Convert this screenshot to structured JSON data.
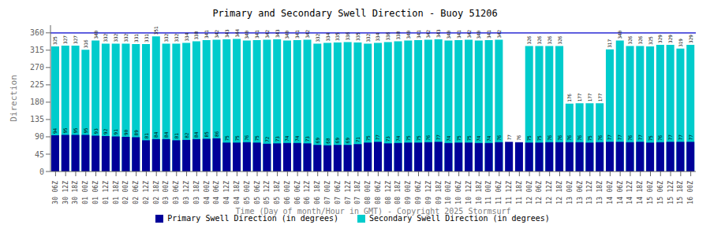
{
  "chart_data": {
    "type": "bar",
    "title": "Primary and Secondary Swell Direction - Buoy 51206",
    "xlabel": "Time (Day of month/Hour in GMT) - Copyright 2025 Stormsurf",
    "ylabel": "Direction",
    "categories": [
      [
        "06Z",
        "30"
      ],
      [
        "12Z",
        "30"
      ],
      [
        "18Z",
        "30"
      ],
      [
        "00Z",
        "01"
      ],
      [
        "06Z",
        "01"
      ],
      [
        "12Z",
        "01"
      ],
      [
        "18Z",
        "01"
      ],
      [
        "00Z",
        "02"
      ],
      [
        "06Z",
        "02"
      ],
      [
        "12Z",
        "02"
      ],
      [
        "18Z",
        "02"
      ],
      [
        "00Z",
        "03"
      ],
      [
        "06Z",
        "03"
      ],
      [
        "12Z",
        "03"
      ],
      [
        "18Z",
        "03"
      ],
      [
        "00Z",
        "04"
      ],
      [
        "06Z",
        "04"
      ],
      [
        "12Z",
        "04"
      ],
      [
        "18Z",
        "04"
      ],
      [
        "00Z",
        "05"
      ],
      [
        "06Z",
        "05"
      ],
      [
        "12Z",
        "05"
      ],
      [
        "18Z",
        "05"
      ],
      [
        "00Z",
        "06"
      ],
      [
        "06Z",
        "06"
      ],
      [
        "12Z",
        "06"
      ],
      [
        "18Z",
        "06"
      ],
      [
        "00Z",
        "07"
      ],
      [
        "06Z",
        "07"
      ],
      [
        "12Z",
        "07"
      ],
      [
        "18Z",
        "07"
      ],
      [
        "00Z",
        "08"
      ],
      [
        "06Z",
        "08"
      ],
      [
        "12Z",
        "08"
      ],
      [
        "18Z",
        "08"
      ],
      [
        "00Z",
        "09"
      ],
      [
        "06Z",
        "09"
      ],
      [
        "12Z",
        "09"
      ],
      [
        "18Z",
        "09"
      ],
      [
        "00Z",
        "10"
      ],
      [
        "06Z",
        "10"
      ],
      [
        "12Z",
        "10"
      ],
      [
        "18Z",
        "10"
      ],
      [
        "00Z",
        "11"
      ],
      [
        "06Z",
        "11"
      ],
      [
        "12Z",
        "11"
      ],
      [
        "18Z",
        "11"
      ],
      [
        "00Z",
        "12"
      ],
      [
        "06Z",
        "12"
      ],
      [
        "12Z",
        "12"
      ],
      [
        "18Z",
        "12"
      ],
      [
        "00Z",
        "13"
      ],
      [
        "06Z",
        "13"
      ],
      [
        "12Z",
        "13"
      ],
      [
        "18Z",
        "13"
      ],
      [
        "00Z",
        "14"
      ],
      [
        "06Z",
        "14"
      ],
      [
        "12Z",
        "14"
      ],
      [
        "18Z",
        "14"
      ],
      [
        "00Z",
        "15"
      ],
      [
        "06Z",
        "15"
      ],
      [
        "12Z",
        "15"
      ],
      [
        "18Z",
        "15"
      ],
      [
        "00Z",
        "16"
      ]
    ],
    "series": [
      {
        "name": "Primary Swell Direction (in degrees)",
        "color": "#000099",
        "values": [
          94,
          95,
          95,
          95,
          93,
          92,
          91,
          90,
          89,
          81,
          84,
          84,
          81,
          82,
          84,
          85,
          86,
          75,
          75,
          76,
          75,
          72,
          73,
          74,
          74,
          73,
          69,
          68,
          69,
          69,
          71,
          75,
          77,
          73,
          74,
          75,
          75,
          76,
          77,
          74,
          75,
          75,
          74,
          74,
          76,
          77,
          76,
          75,
          75,
          76,
          76,
          76,
          76,
          75,
          76,
          77,
          77,
          76,
          77,
          75,
          76,
          77,
          77,
          77
        ]
      },
      {
        "name": "Secondary Swell Direction (in degrees)",
        "color": "#00CCCC",
        "values": [
          325,
          327,
          327,
          316,
          340,
          332,
          332,
          332,
          331,
          331,
          351,
          332,
          332,
          334,
          338,
          341,
          342,
          343,
          344,
          340,
          341,
          342,
          343,
          340,
          341,
          342,
          332,
          334,
          335,
          336,
          335,
          332,
          334,
          336,
          338,
          340,
          341,
          342,
          343,
          340,
          341,
          342,
          340,
          341,
          342,
          1,
          1,
          326,
          326,
          326,
          326,
          176,
          177,
          177,
          177,
          317,
          340,
          326,
          326,
          325,
          329,
          329,
          319,
          329
        ],
        "value_labels": [
          "325",
          "327",
          "327",
          "316",
          "340",
          "332",
          "332",
          "332",
          "331",
          "331",
          "351",
          "332",
          "332",
          "334",
          "338",
          "341",
          "342",
          "343",
          "344",
          "340",
          "341",
          "342",
          "343",
          "340",
          "341",
          "342",
          "332",
          "334",
          "335",
          "336",
          "335",
          "332",
          "334",
          "336",
          "338",
          "340",
          "341",
          "342",
          "343",
          "340",
          "341",
          "342",
          "340",
          "341",
          "342",
          null,
          null,
          "326",
          "326",
          "326",
          "326",
          "176",
          "177",
          "177",
          "177",
          "317",
          "340",
          "326",
          "326",
          "325",
          "329",
          "329",
          "319",
          "329"
        ]
      }
    ],
    "ylim": [
      0,
      380
    ],
    "yticks": [
      0,
      45,
      90,
      135,
      180,
      225,
      270,
      315,
      360
    ],
    "data_labels": true,
    "grid": false,
    "legend": "bottom",
    "hline": {
      "value": 360,
      "color": "#0000cc"
    }
  }
}
